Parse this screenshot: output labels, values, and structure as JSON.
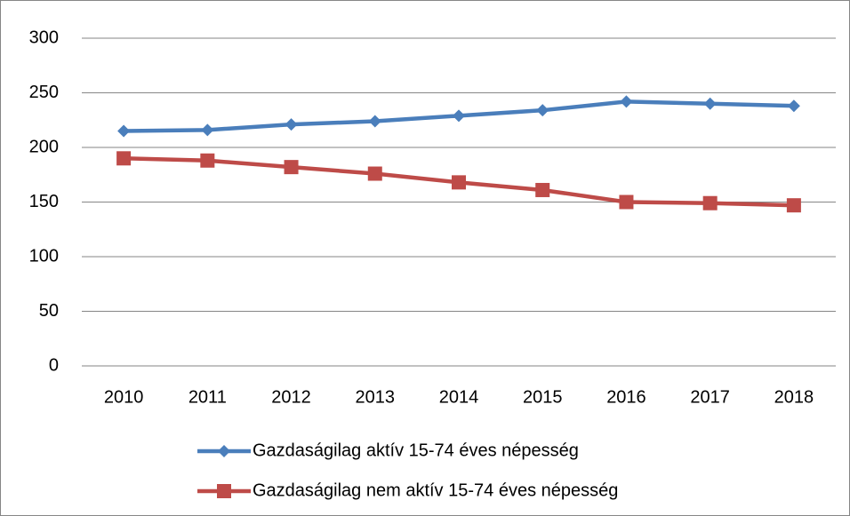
{
  "chart_data": {
    "type": "line",
    "categories": [
      "2010",
      "2011",
      "2012",
      "2013",
      "2014",
      "2015",
      "2016",
      "2017",
      "2018"
    ],
    "series": [
      {
        "name": "Gazdaságilag aktív 15-74 éves népesség",
        "color": "#4a7ebb",
        "marker": "diamond",
        "values": [
          215,
          216,
          221,
          224,
          229,
          234,
          242,
          240,
          238
        ]
      },
      {
        "name": "Gazdaságilag nem aktív 15-74 éves népesség",
        "color": "#be4b48",
        "marker": "square",
        "values": [
          190,
          188,
          182,
          176,
          168,
          161,
          150,
          149,
          147
        ]
      }
    ],
    "ylim": [
      0,
      300
    ],
    "yticks": [
      0,
      50,
      100,
      150,
      200,
      250,
      300
    ],
    "grid": true,
    "legend": "bottom"
  }
}
